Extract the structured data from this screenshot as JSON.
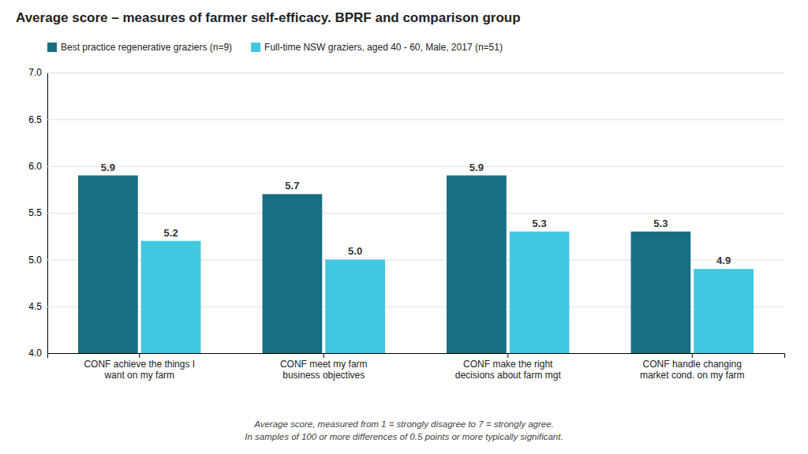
{
  "chart_data": {
    "type": "bar",
    "title": "Average score – measures of farmer self-efficacy. BPRF and comparison group",
    "categories": [
      "CONF achieve the things I\nwant on my farm",
      "CONF meet my farm\nbusiness objectives",
      "CONF make the right\ndecisions about farm mgt",
      "CONF handle changing\nmarket cond. on my farm"
    ],
    "series": [
      {
        "name": "Best practice regenerative graziers (n=9)",
        "color": "#1a6e82",
        "values": [
          5.9,
          5.7,
          5.9,
          5.3
        ]
      },
      {
        "name": "Full-time NSW graziers, aged 40 - 60, Male, 2017 (n=51)",
        "color": "#40c8e0",
        "values": [
          5.2,
          5.0,
          5.3,
          4.9
        ],
        "value_labels": [
          "5.2",
          "5.0",
          "5.3",
          "4.9"
        ]
      }
    ],
    "ylim": [
      4.0,
      7.0
    ],
    "yticks": [
      {
        "value": 4.0,
        "label": "4.0"
      },
      4.5,
      {
        "value": 5.0,
        "label": "5.0"
      },
      5.5,
      {
        "value": 6.0,
        "label": "6.0"
      },
      6.5,
      {
        "value": 7.0,
        "label": "7.0"
      }
    ],
    "grid": true,
    "legend": "top-left",
    "data_labels": true,
    "annotations": [
      "Average score, measured from 1 = strongly disagree to 7 = strongly agree.",
      "In samples of 100 or more differences of 0.5 points or more typically significant."
    ]
  }
}
